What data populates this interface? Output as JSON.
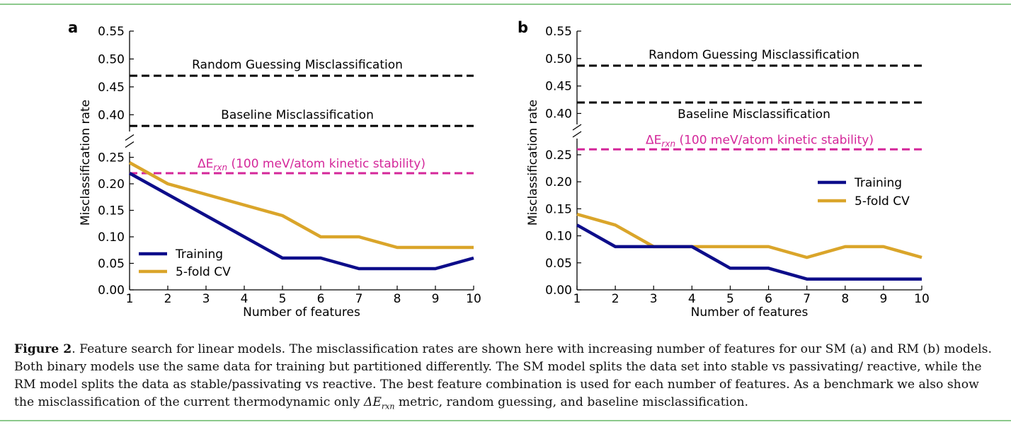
{
  "colors": {
    "training": "#0d0d8a",
    "cv": "#daa52a",
    "kinetic": "#d4279a",
    "reference": "#000000",
    "rule": "#8cc98c"
  },
  "chart_data": [
    {
      "type": "line",
      "panel_label": "a",
      "xlabel": "Number of features",
      "ylabel": "Misclassification rate",
      "x": [
        1,
        2,
        3,
        4,
        5,
        6,
        7,
        8,
        9,
        10
      ],
      "x_ticks": [
        "1",
        "2",
        "3",
        "4",
        "5",
        "6",
        "7",
        "8",
        "9",
        "10"
      ],
      "xlim": [
        1,
        10
      ],
      "broken_y_axis": true,
      "ylim_lower": [
        0.0,
        0.26
      ],
      "ylim_upper": [
        0.37,
        0.55
      ],
      "y_ticks_lower": [
        "0.00",
        "0.05",
        "0.10",
        "0.15",
        "0.20",
        "0.25"
      ],
      "y_ticks_upper": [
        "0.40",
        "0.45",
        "0.50",
        "0.55"
      ],
      "series": [
        {
          "name": "Training",
          "values": [
            0.22,
            0.18,
            0.14,
            0.1,
            0.06,
            0.06,
            0.04,
            0.04,
            0.04,
            0.06
          ]
        },
        {
          "name": "5-fold CV",
          "values": [
            0.24,
            0.2,
            0.18,
            0.16,
            0.14,
            0.1,
            0.1,
            0.08,
            0.08,
            0.08
          ]
        }
      ],
      "reference_lines": [
        {
          "label": "Random Guessing Misclassification",
          "value": 0.47,
          "label_position": "above"
        },
        {
          "label": "Baseline Misclassification",
          "value": 0.38,
          "label_position": "above"
        }
      ],
      "kinetic_line": {
        "prefix": "ΔE",
        "sub": "rxn",
        "suffix": " (100 meV/atom kinetic stability)",
        "value": 0.22
      },
      "legend_position": "lower-left"
    },
    {
      "type": "line",
      "panel_label": "b",
      "xlabel": "Number of features",
      "ylabel": "Misclassification rate",
      "x": [
        1,
        2,
        3,
        4,
        5,
        6,
        7,
        8,
        9,
        10
      ],
      "x_ticks": [
        "1",
        "2",
        "3",
        "4",
        "5",
        "6",
        "7",
        "8",
        "9",
        "10"
      ],
      "xlim": [
        1,
        10
      ],
      "broken_y_axis": true,
      "ylim_lower": [
        0.0,
        0.28
      ],
      "ylim_upper": [
        0.38,
        0.55
      ],
      "y_ticks_lower": [
        "0.00",
        "0.05",
        "0.10",
        "0.15",
        "0.20",
        "0.25"
      ],
      "y_ticks_upper": [
        "0.40",
        "0.45",
        "0.50",
        "0.55"
      ],
      "series": [
        {
          "name": "Training",
          "values": [
            0.12,
            0.08,
            0.08,
            0.08,
            0.04,
            0.04,
            0.02,
            0.02,
            0.02,
            0.02
          ]
        },
        {
          "name": "5-fold CV",
          "values": [
            0.14,
            0.12,
            0.08,
            0.08,
            0.08,
            0.08,
            0.06,
            0.08,
            0.08,
            0.06
          ]
        }
      ],
      "reference_lines": [
        {
          "label": "Random Guessing Misclassification",
          "value": 0.487,
          "label_position": "above"
        },
        {
          "label": "Baseline Misclassification",
          "value": 0.42,
          "label_position": "below"
        }
      ],
      "kinetic_line": {
        "prefix": "ΔE",
        "sub": "rxn",
        "suffix": " (100 meV/atom kinetic stability)",
        "value": 0.26
      },
      "legend_position": "center-right"
    }
  ],
  "caption": {
    "label": "Figure 2",
    "text": ". Feature search for linear models. The misclassification rates are shown here with increasing number of features for our SM (a) and RM (b) models. Both binary models use the same data for training but partitioned differently. The SM model splits the data set into stable vs passivating/ reactive, while the RM model splits the data as stable/passivating vs reactive. The best feature combination is used for each number of features. As a benchmark we also show the misclassification of the current thermodynamic only",
    "metric": "ΔE",
    "metric_sub": "rxn",
    "tail": " metric, random guessing, and baseline misclassification."
  }
}
